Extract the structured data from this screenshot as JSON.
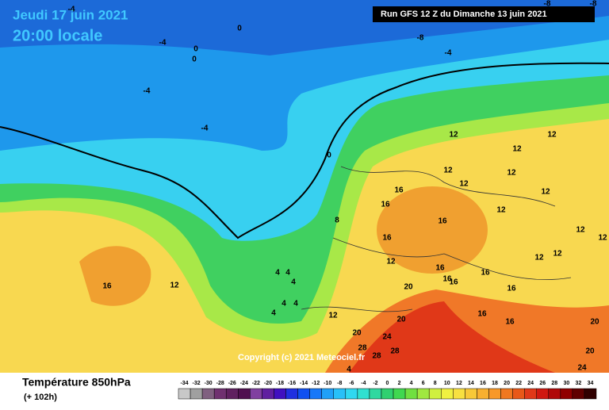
{
  "header": {
    "date": "Jeudi 17 juin 2021",
    "time": "20:00 locale",
    "run": "Run GFS 12 Z du Dimanche 13 juin 2021"
  },
  "copyright": "Copyright (c) 2021 Meteociel.fr",
  "footer": {
    "title": "Température 850hPa",
    "lead": "(+ 102h)"
  },
  "legend": {
    "values": [
      -34,
      -32,
      -30,
      -28,
      -26,
      -24,
      -22,
      -20,
      -18,
      -16,
      -14,
      -12,
      -10,
      -8,
      -6,
      -4,
      -2,
      0,
      2,
      4,
      6,
      8,
      10,
      12,
      14,
      16,
      18,
      20,
      22,
      24,
      26,
      28,
      30,
      32,
      34
    ],
    "colors": [
      "#c8c8c8",
      "#a0a0a0",
      "#806080",
      "#703070",
      "#602060",
      "#501050",
      "#8040a0",
      "#6020a0",
      "#4010c0",
      "#2030e0",
      "#1050f0",
      "#1878f8",
      "#20a0f8",
      "#28c0f8",
      "#30d8f0",
      "#30e0d0",
      "#30d8a0",
      "#30d070",
      "#40d850",
      "#70e040",
      "#a0e840",
      "#d0f040",
      "#f0f040",
      "#f8e040",
      "#f8c838",
      "#f8b030",
      "#f89828",
      "#f07820",
      "#e85818",
      "#e03818",
      "#d01810",
      "#b00808",
      "#900000",
      "#600000",
      "#300000"
    ]
  },
  "map_labels": [
    "-4",
    "-4",
    "-4",
    "-4",
    "-4",
    "-8",
    "-8",
    "-8",
    "0",
    "0",
    "0",
    "0",
    "12",
    "12",
    "12",
    "12",
    "12",
    "12",
    "12",
    "12",
    "12",
    "12",
    "12",
    "12",
    "12",
    "12",
    "12",
    "16",
    "16",
    "16",
    "16",
    "16",
    "16",
    "16",
    "16",
    "16",
    "16",
    "16",
    "16",
    "20",
    "20",
    "20",
    "20",
    "20",
    "24",
    "24",
    "28",
    "28",
    "28",
    "4",
    "4",
    "4",
    "4",
    "4",
    "4",
    "4",
    "8"
  ]
}
